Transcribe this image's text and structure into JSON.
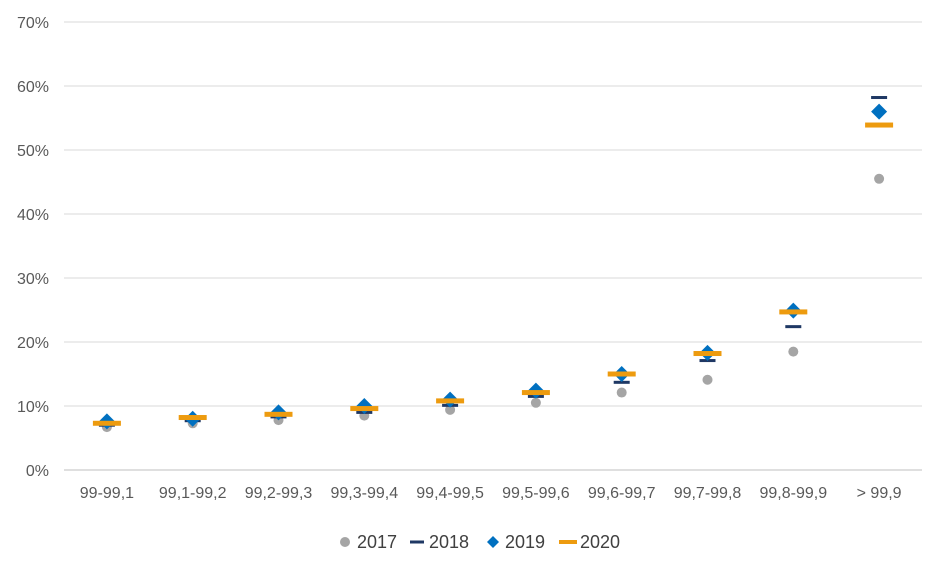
{
  "chart_data": {
    "type": "scatter",
    "categories": [
      "99-99,1",
      "99,1-99,2",
      "99,2-99,3",
      "99,3-99,4",
      "99,4-99,5",
      "99,5-99,6",
      "99,6-99,7",
      "99,7-99,8",
      "99,8-99,9",
      "> 99,9"
    ],
    "y_ticks": [
      "0%",
      "10%",
      "20%",
      "30%",
      "40%",
      "50%",
      "60%",
      "70%"
    ],
    "ylim": [
      0,
      70
    ],
    "y_unit": "%",
    "grid": true,
    "legend_position": "bottom",
    "series": [
      {
        "name": "2017",
        "marker": "circle",
        "color": "#A5A5A5",
        "values": [
          6.7,
          7.3,
          7.8,
          8.5,
          9.4,
          10.5,
          12.1,
          14.1,
          18.5,
          45.5
        ]
      },
      {
        "name": "2018",
        "marker": "dash",
        "color": "#1F3864",
        "values": [
          7.0,
          7.7,
          8.3,
          9.0,
          10.1,
          11.5,
          13.7,
          17.1,
          22.4,
          58.2
        ]
      },
      {
        "name": "2019",
        "marker": "diamond",
        "color": "#0070C0",
        "values": [
          7.6,
          8.0,
          9.0,
          10.0,
          11.0,
          12.4,
          15.0,
          18.3,
          24.9,
          56.0
        ]
      },
      {
        "name": "2020",
        "marker": "bar",
        "color": "#ED9B0F",
        "values": [
          7.3,
          8.2,
          8.7,
          9.6,
          10.8,
          12.1,
          15.0,
          18.2,
          24.7,
          53.9
        ]
      }
    ]
  }
}
